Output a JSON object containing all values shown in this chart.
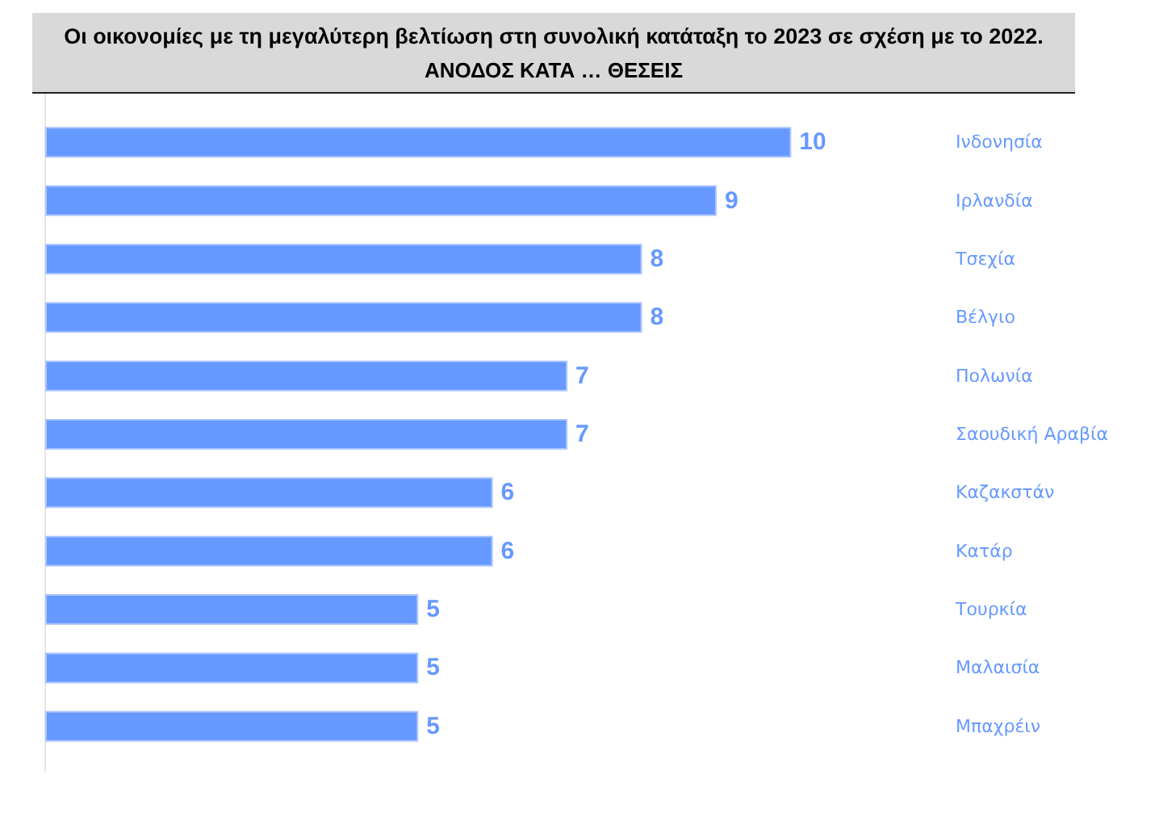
{
  "chart_data": {
    "type": "bar",
    "orientation": "horizontal",
    "title": "Οι οικονομίες με τη μεγαλύτερη βελτίωση στη συνολική κατάταξη το 2023 σε σχέση με το 2022.",
    "subtitle": "ΑΝΟΔΟΣ ΚΑΤΑ … ΘΕΣΕΙΣ",
    "categories": [
      "Ινδονησία",
      "Ιρλανδία",
      "Τσεχία",
      "Βέλγιο",
      "Πολωνία",
      "Σαουδική Αραβία",
      "Καζακστάν",
      "Κατάρ",
      "Τουρκία",
      "Μαλαισία",
      "Μπαχρέιν"
    ],
    "values": [
      10,
      9,
      8,
      8,
      7,
      7,
      6,
      6,
      5,
      5,
      5
    ],
    "color": "#6699ff",
    "data_labels": true
  }
}
